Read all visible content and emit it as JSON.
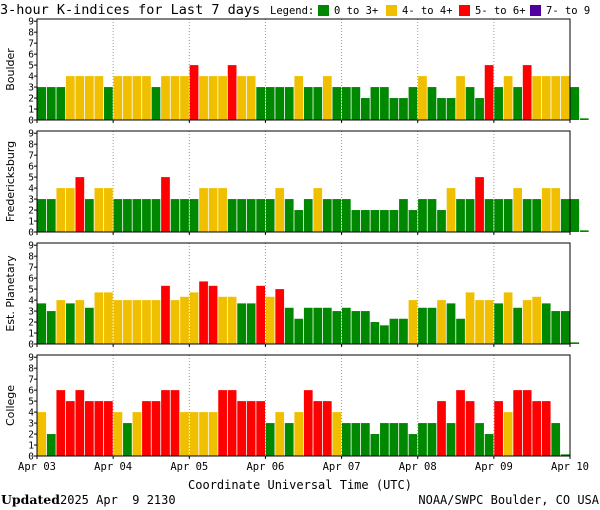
{
  "chart_data": {
    "type": "bar",
    "title": "3-hour K-indices for Last 7 days",
    "legend_title": "Legend:",
    "legend": [
      {
        "label": "0 to 3+",
        "color": "#008800"
      },
      {
        "label": "4- to 4+",
        "color": "#f0c000"
      },
      {
        "label": "5- to 6+",
        "color": "#ff0000"
      },
      {
        "label": "7- to 9",
        "color": "#5000a0"
      }
    ],
    "ylim": [
      0,
      9
    ],
    "yticks": [
      "0",
      "1",
      "2",
      "3",
      "4",
      "5",
      "6",
      "7",
      "8",
      "9"
    ],
    "x_tick_labels": [
      "Apr 03",
      "Apr 04",
      "Apr 05",
      "Apr 06",
      "Apr 07",
      "Apr 08",
      "Apr 09",
      "Apr 10"
    ],
    "xlabel": "Coordinate Universal Time (UTC)",
    "panels": [
      {
        "name": "Boulder",
        "values": [
          3,
          3,
          3,
          4,
          4,
          4,
          4,
          3,
          4,
          4,
          4,
          4,
          3,
          4,
          4,
          4,
          5,
          4,
          4,
          4,
          5,
          4,
          4,
          3,
          3,
          3,
          3,
          4,
          3,
          3,
          4,
          3,
          3,
          3,
          2,
          3,
          3,
          2,
          2,
          3,
          4,
          3,
          2,
          2,
          4,
          3,
          2,
          5,
          3,
          4,
          3,
          5,
          4,
          4,
          4,
          4,
          3,
          0.15
        ]
      },
      {
        "name": "Fredericksburg",
        "values": [
          3,
          3,
          4,
          4,
          5,
          3,
          4,
          4,
          3,
          3,
          3,
          3,
          3,
          5,
          3,
          3,
          3,
          4,
          4,
          4,
          3,
          3,
          3,
          3,
          3,
          4,
          3,
          2,
          3,
          4,
          3,
          3,
          3,
          2,
          2,
          2,
          2,
          2,
          3,
          2,
          3,
          3,
          2,
          4,
          3,
          3,
          5,
          3,
          3,
          3,
          4,
          3,
          3,
          4,
          4,
          3,
          3,
          0.15
        ]
      },
      {
        "name": "Est. Planetary",
        "values": [
          3.7,
          3,
          4,
          3.7,
          4,
          3.3,
          4.7,
          4.7,
          4,
          4,
          4,
          4,
          4,
          5.3,
          4,
          4.3,
          4.7,
          5.7,
          5.3,
          4.3,
          4.3,
          3.7,
          3.7,
          5.3,
          4.3,
          5,
          3.3,
          2.3,
          3.3,
          3.3,
          3.3,
          3,
          3.3,
          3,
          3,
          2,
          1.7,
          2.3,
          2.3,
          4,
          3.3,
          3.3,
          4,
          3.7,
          2.3,
          4.7,
          4,
          4,
          3.7,
          4.7,
          3.3,
          4,
          4.3,
          3.7,
          3,
          3,
          0.15
        ]
      },
      {
        "name": "College",
        "values": [
          4,
          2,
          6,
          5,
          6,
          5,
          5,
          5,
          4,
          3,
          4,
          5,
          5,
          6,
          6,
          4,
          4,
          4,
          4,
          6,
          6,
          5,
          5,
          5,
          3,
          4,
          3,
          4,
          6,
          5,
          5,
          4,
          3,
          3,
          3,
          2,
          3,
          3,
          3,
          2,
          3,
          3,
          5,
          3,
          6,
          5,
          3,
          2,
          5,
          4,
          6,
          6,
          5,
          5,
          3,
          0.15
        ]
      }
    ]
  },
  "footer": {
    "updated_label": "Updated",
    "updated_time": "2025 Apr  9 2130",
    "source": "NOAA/SWPC Boulder, CO USA"
  }
}
